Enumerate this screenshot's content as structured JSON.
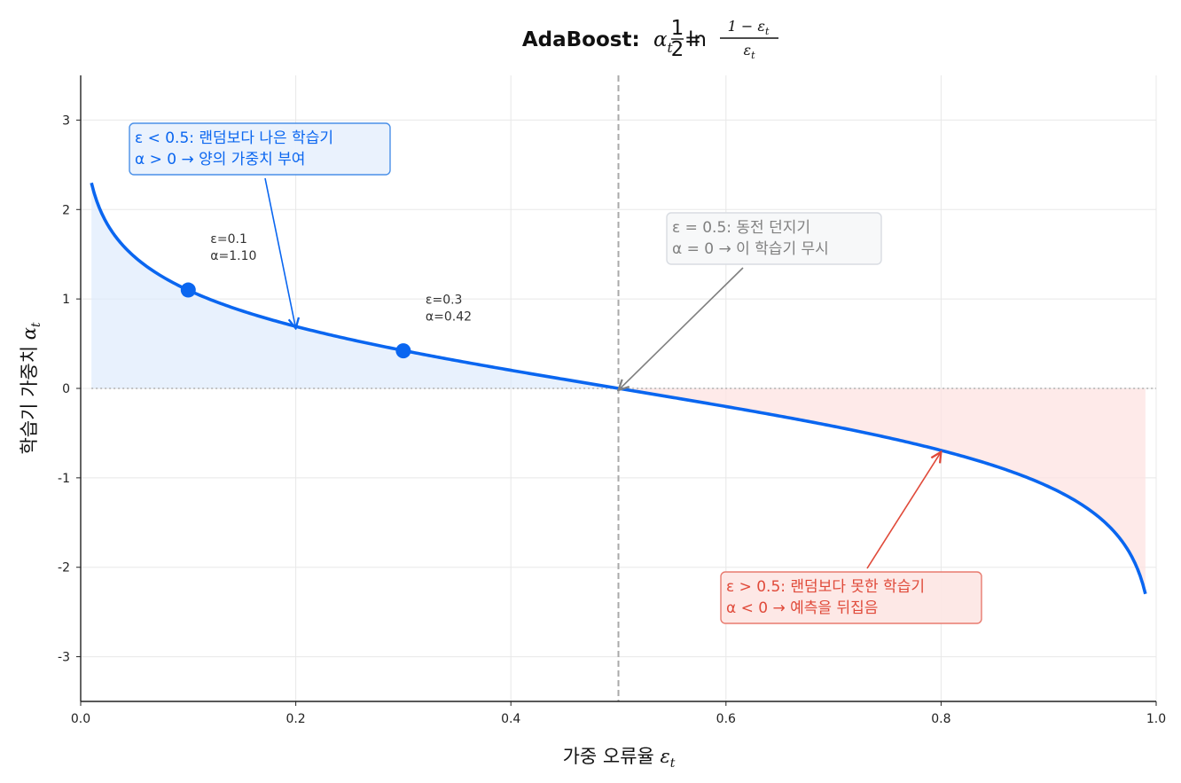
{
  "chart_data": {
    "type": "line",
    "title": {
      "bold": "AdaBoost:",
      "formula_lhs": "α",
      "formula_lhs_sub": "t",
      "equals": "=",
      "half_num": "1",
      "half_den": "2",
      "ln": "ln",
      "frac_num": "1 − ε",
      "frac_num_sub": "t",
      "frac_den": "ε",
      "frac_den_sub": "t"
    },
    "xlabel": {
      "text": "가중 오류율 ",
      "symbol": "ε",
      "sub": "t"
    },
    "ylabel": {
      "text": "학습기 가중치 ",
      "symbol": "α",
      "sub": "t"
    },
    "xlim": [
      0,
      1
    ],
    "ylim": [
      -3.5,
      3.5
    ],
    "xticks": [
      0,
      0.2,
      0.4,
      0.6,
      0.8,
      1
    ],
    "xtick_labels": [
      "0.0",
      "0.2",
      "0.4",
      "0.6",
      "0.8",
      "1.0"
    ],
    "yticks": [
      -3,
      -2,
      -1,
      0,
      1,
      2,
      3
    ],
    "ytick_labels": [
      "-3",
      "-2",
      "-1",
      "0",
      "1",
      "2",
      "3"
    ],
    "grid": true,
    "curve": {
      "function": "0.5*ln((1-e)/e)",
      "x_range": [
        0.01,
        0.99
      ],
      "color": "#0a66f0"
    },
    "fill_positive_color": "#dbe9fc",
    "fill_negative_color": "#fde3e1",
    "vline": {
      "x": 0.5,
      "color": "#aaaaaa"
    },
    "hline": {
      "y": 0,
      "color": "#b0b0b0"
    },
    "points": [
      {
        "x": 0.1,
        "y": 1.1,
        "label_line1": "ε=0.1",
        "label_line2": "α=1.10"
      },
      {
        "x": 0.3,
        "y": 0.42,
        "label_line1": "ε=0.3",
        "label_line2": "α=0.42"
      }
    ],
    "annotations": [
      {
        "id": "better",
        "line1": "ε < 0.5: 랜덤보다 나은 학습기",
        "line2": "α > 0 → 양의 가중치 부여",
        "arrow_to": [
          0.2,
          0.69
        ],
        "color": "#0a66f0",
        "bg": "#e8f1fd",
        "border": "#4a90e8"
      },
      {
        "id": "coin",
        "line1": "ε = 0.5: 동전 던지기",
        "line2": "α = 0 → 이 학습기 무시",
        "arrow_to": [
          0.5,
          0.0
        ],
        "color": "#808080",
        "bg": "#f6f7f9",
        "border": "#d8dce2"
      },
      {
        "id": "worse",
        "line1": "ε > 0.5: 랜덤보다 못한 학습기",
        "line2": "α < 0 → 예측을 뒤집음",
        "arrow_to": [
          0.8,
          -0.69
        ],
        "color": "#e04a3a",
        "bg": "#fde6e4",
        "border": "#e87a6e"
      }
    ]
  }
}
